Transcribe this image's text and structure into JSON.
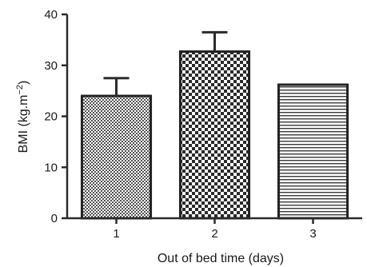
{
  "chart_data": {
    "type": "bar",
    "categories": [
      "1",
      "2",
      "3"
    ],
    "values": [
      24,
      32.7,
      26.2
    ],
    "error_upper": [
      27.5,
      36.5,
      null
    ],
    "xlabel": "Out of bed time (days)",
    "ylabel": "BMI (kg.m",
    "ylabel_sup": "−2",
    "ylabel_close": ")",
    "ylim": [
      0,
      40
    ],
    "yticks": [
      "0",
      "10",
      "20",
      "30",
      "40"
    ],
    "patterns": [
      "fine-checker",
      "coarse-checker",
      "horizontal-lines"
    ],
    "grid": false
  }
}
